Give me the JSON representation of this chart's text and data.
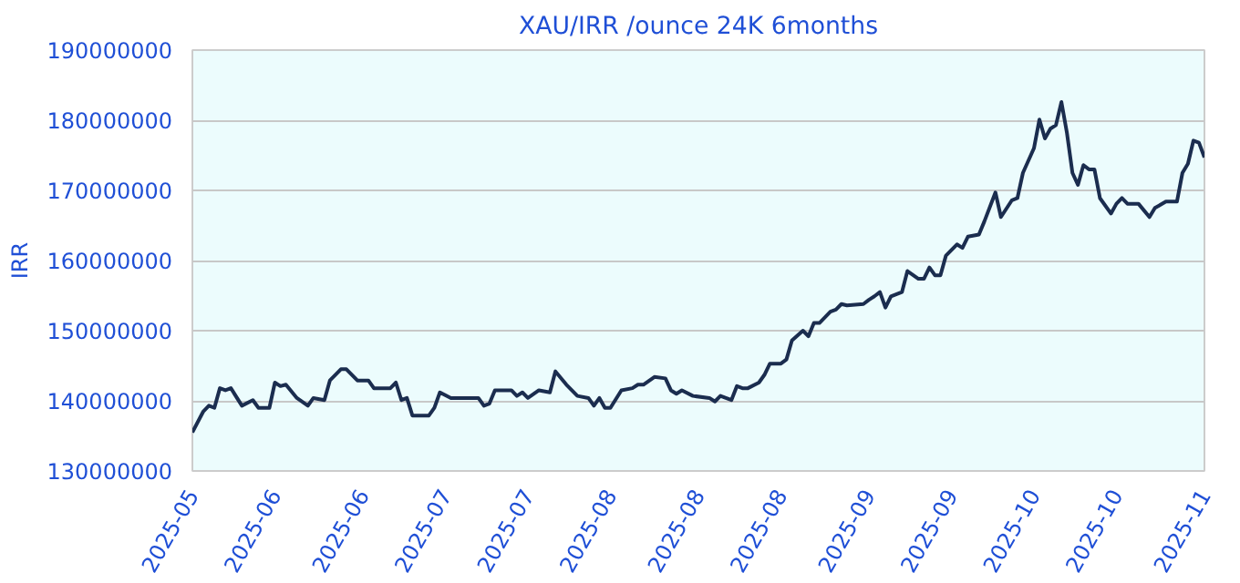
{
  "chart_data": {
    "type": "line",
    "title": "XAU/IRR /ounce 24K 6months",
    "ylabel": "IRR",
    "xlim": [
      "2025-05-06",
      "2025-11-06"
    ],
    "xticks": [
      {
        "value": "2025-05-06",
        "label": "2025-05"
      },
      {
        "value": "2025-05-21",
        "label": "2025-06"
      },
      {
        "value": "2025-06-06",
        "label": "2025-06"
      },
      {
        "value": "2025-06-21",
        "label": "2025-07"
      },
      {
        "value": "2025-07-06",
        "label": "2025-07"
      },
      {
        "value": "2025-07-21",
        "label": "2025-08"
      },
      {
        "value": "2025-08-06",
        "label": "2025-08"
      },
      {
        "value": "2025-08-21",
        "label": "2025-08"
      },
      {
        "value": "2025-09-06",
        "label": "2025-09"
      },
      {
        "value": "2025-09-21",
        "label": "2025-09"
      },
      {
        "value": "2025-10-06",
        "label": "2025-10"
      },
      {
        "value": "2025-10-21",
        "label": "2025-10"
      },
      {
        "value": "2025-11-06",
        "label": "2025-11"
      }
    ],
    "ylim": [
      130000000,
      190000000
    ],
    "yticks": [
      130000000,
      140000000,
      150000000,
      160000000,
      170000000,
      180000000,
      190000000
    ],
    "grid": "y",
    "marker": "none",
    "line_style": "solid",
    "series": [
      {
        "color": "#1b2d4f",
        "x": [
          "2025-05-06",
          "2025-05-08",
          "2025-05-09",
          "2025-05-10",
          "2025-05-11",
          "2025-05-12",
          "2025-05-13",
          "2025-05-15",
          "2025-05-17",
          "2025-05-18",
          "2025-05-20",
          "2025-05-21",
          "2025-05-22",
          "2025-05-23",
          "2025-05-25",
          "2025-05-27",
          "2025-05-28",
          "2025-05-30",
          "2025-05-31",
          "2025-06-02",
          "2025-06-03",
          "2025-06-05",
          "2025-06-07",
          "2025-06-08",
          "2025-06-11",
          "2025-06-12",
          "2025-06-13",
          "2025-06-14",
          "2025-06-15",
          "2025-06-18",
          "2025-06-19",
          "2025-06-20",
          "2025-06-22",
          "2025-06-27",
          "2025-06-28",
          "2025-06-29",
          "2025-06-30",
          "2025-07-03",
          "2025-07-04",
          "2025-07-05",
          "2025-07-06",
          "2025-07-08",
          "2025-07-10",
          "2025-07-11",
          "2025-07-13",
          "2025-07-15",
          "2025-07-17",
          "2025-07-18",
          "2025-07-19",
          "2025-07-20",
          "2025-07-21",
          "2025-07-23",
          "2025-07-25",
          "2025-07-26",
          "2025-07-27",
          "2025-07-29",
          "2025-07-31",
          "2025-08-01",
          "2025-08-02",
          "2025-08-03",
          "2025-08-05",
          "2025-08-08",
          "2025-08-09",
          "2025-08-10",
          "2025-08-12",
          "2025-08-13",
          "2025-08-14",
          "2025-08-15",
          "2025-08-17",
          "2025-08-18",
          "2025-08-19",
          "2025-08-21",
          "2025-08-22",
          "2025-08-23",
          "2025-08-25",
          "2025-08-26",
          "2025-08-27",
          "2025-08-28",
          "2025-08-30",
          "2025-08-31",
          "2025-09-01",
          "2025-09-02",
          "2025-09-05",
          "2025-09-06",
          "2025-09-07",
          "2025-09-08",
          "2025-09-09",
          "2025-09-10",
          "2025-09-12",
          "2025-09-13",
          "2025-09-15",
          "2025-09-16",
          "2025-09-17",
          "2025-09-18",
          "2025-09-19",
          "2025-09-20",
          "2025-09-22",
          "2025-09-23",
          "2025-09-24",
          "2025-09-26",
          "2025-09-27",
          "2025-09-29",
          "2025-09-30",
          "2025-10-02",
          "2025-10-03",
          "2025-10-04",
          "2025-10-06",
          "2025-10-07",
          "2025-10-08",
          "2025-10-09",
          "2025-10-10",
          "2025-10-11",
          "2025-10-12",
          "2025-10-13",
          "2025-10-14",
          "2025-10-15",
          "2025-10-16",
          "2025-10-17",
          "2025-10-18",
          "2025-10-20",
          "2025-10-21",
          "2025-10-22",
          "2025-10-23",
          "2025-10-25",
          "2025-10-27",
          "2025-10-28",
          "2025-10-30",
          "2025-11-01",
          "2025-11-02",
          "2025-11-03",
          "2025-11-04",
          "2025-11-05",
          "2025-11-06"
        ],
        "values": [
          135500000,
          138500000,
          139300000,
          139000000,
          141800000,
          141500000,
          141800000,
          139300000,
          140100000,
          139000000,
          139000000,
          142600000,
          142100000,
          142300000,
          140400000,
          139300000,
          140400000,
          140100000,
          142900000,
          144500000,
          144500000,
          142900000,
          142900000,
          141800000,
          141800000,
          142600000,
          140100000,
          140400000,
          137900000,
          137900000,
          139000000,
          141200000,
          140400000,
          140400000,
          139300000,
          139600000,
          141500000,
          141500000,
          140700000,
          141200000,
          140400000,
          141500000,
          141200000,
          144200000,
          142300000,
          140700000,
          140400000,
          139300000,
          140400000,
          139000000,
          139000000,
          141500000,
          141800000,
          142300000,
          142300000,
          143400000,
          143200000,
          141500000,
          141000000,
          141500000,
          140700000,
          140400000,
          139900000,
          140700000,
          140100000,
          142100000,
          141800000,
          141800000,
          142600000,
          143700000,
          145300000,
          145300000,
          145900000,
          148600000,
          150000000,
          149200000,
          151100000,
          151100000,
          152700000,
          153000000,
          153800000,
          153600000,
          153800000,
          154400000,
          154900000,
          155500000,
          153300000,
          154900000,
          155500000,
          158500000,
          157400000,
          157400000,
          159000000,
          157900000,
          157900000,
          160700000,
          162300000,
          161800000,
          163400000,
          163700000,
          165600000,
          169700000,
          166200000,
          168600000,
          168900000,
          172500000,
          176000000,
          180100000,
          177400000,
          178800000,
          179300000,
          182600000,
          178200000,
          172500000,
          170800000,
          173600000,
          173000000,
          173000000,
          168900000,
          166700000,
          168100000,
          168900000,
          168100000,
          168100000,
          166200000,
          167500000,
          168400000,
          168400000,
          172500000,
          173800000,
          177100000,
          176800000,
          174700000
        ]
      }
    ]
  }
}
